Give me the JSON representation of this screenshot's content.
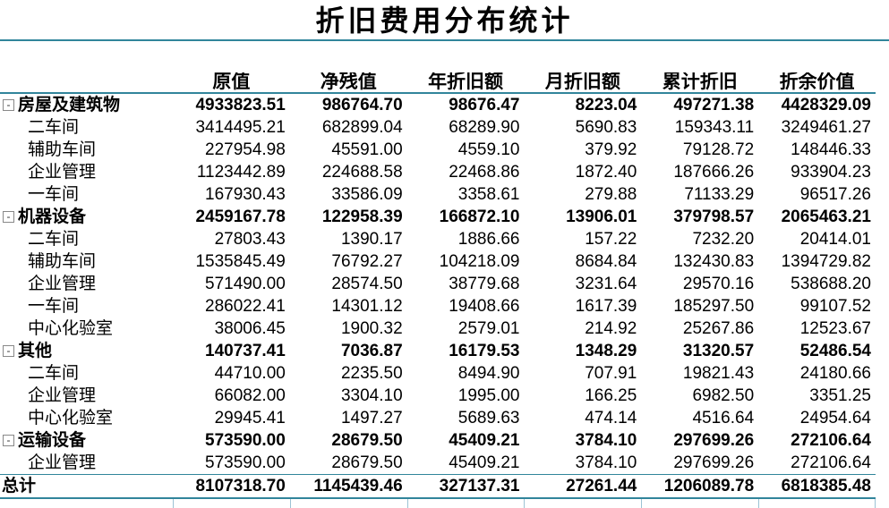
{
  "title": "折旧费用分布统计",
  "icons": {
    "collapse": "-"
  },
  "colors": {
    "accent": "#31859B",
    "tick": "#9CC3D5"
  },
  "chart_data": {
    "type": "table",
    "title": "折旧费用分布统计",
    "row_header_label": "",
    "columns": [
      "原值",
      "净残值",
      "年折旧额",
      "月折旧额",
      "累计折旧",
      "折余价值"
    ],
    "rows": [
      {
        "label": "房屋及建筑物",
        "level": "group",
        "values": [
          "4933823.51",
          "986764.70",
          "98676.47",
          "8223.04",
          "497271.38",
          "4428329.09"
        ]
      },
      {
        "label": "二车间",
        "level": "item",
        "values": [
          "3414495.21",
          "682899.04",
          "68289.90",
          "5690.83",
          "159343.11",
          "3249461.27"
        ]
      },
      {
        "label": "辅助车间",
        "level": "item",
        "values": [
          "227954.98",
          "45591.00",
          "4559.10",
          "379.92",
          "79128.72",
          "148446.33"
        ]
      },
      {
        "label": "企业管理",
        "level": "item",
        "values": [
          "1123442.89",
          "224688.58",
          "22468.86",
          "1872.40",
          "187666.26",
          "933904.23"
        ]
      },
      {
        "label": "一车间",
        "level": "item",
        "values": [
          "167930.43",
          "33586.09",
          "3358.61",
          "279.88",
          "71133.29",
          "96517.26"
        ]
      },
      {
        "label": "机器设备",
        "level": "group",
        "values": [
          "2459167.78",
          "122958.39",
          "166872.10",
          "13906.01",
          "379798.57",
          "2065463.21"
        ]
      },
      {
        "label": "二车间",
        "level": "item",
        "values": [
          "27803.43",
          "1390.17",
          "1886.66",
          "157.22",
          "7232.20",
          "20414.01"
        ]
      },
      {
        "label": "辅助车间",
        "level": "item",
        "values": [
          "1535845.49",
          "76792.27",
          "104218.09",
          "8684.84",
          "132430.83",
          "1394729.82"
        ]
      },
      {
        "label": "企业管理",
        "level": "item",
        "values": [
          "571490.00",
          "28574.50",
          "38779.68",
          "3231.64",
          "29570.16",
          "538688.20"
        ]
      },
      {
        "label": "一车间",
        "level": "item",
        "values": [
          "286022.41",
          "14301.12",
          "19408.66",
          "1617.39",
          "185297.50",
          "99107.52"
        ]
      },
      {
        "label": "中心化验室",
        "level": "item",
        "values": [
          "38006.45",
          "1900.32",
          "2579.01",
          "214.92",
          "25267.86",
          "12523.67"
        ]
      },
      {
        "label": "其他",
        "level": "group",
        "values": [
          "140737.41",
          "7036.87",
          "16179.53",
          "1348.29",
          "31320.57",
          "52486.54"
        ]
      },
      {
        "label": "二车间",
        "level": "item",
        "values": [
          "44710.00",
          "2235.50",
          "8494.90",
          "707.91",
          "19821.43",
          "24180.66"
        ]
      },
      {
        "label": "企业管理",
        "level": "item",
        "values": [
          "66082.00",
          "3304.10",
          "1995.00",
          "166.25",
          "6982.50",
          "3351.25"
        ]
      },
      {
        "label": "中心化验室",
        "level": "item",
        "values": [
          "29945.41",
          "1497.27",
          "5689.63",
          "474.14",
          "4516.64",
          "24954.64"
        ]
      },
      {
        "label": "运输设备",
        "level": "group",
        "values": [
          "573590.00",
          "28679.50",
          "45409.21",
          "3784.10",
          "297699.26",
          "272106.64"
        ]
      },
      {
        "label": "企业管理",
        "level": "item",
        "values": [
          "573590.00",
          "28679.50",
          "45409.21",
          "3784.10",
          "297699.26",
          "272106.64"
        ]
      },
      {
        "label": "总计",
        "level": "total",
        "values": [
          "8107318.70",
          "1145439.46",
          "327137.31",
          "27261.44",
          "1206089.78",
          "6818385.48"
        ]
      }
    ]
  }
}
